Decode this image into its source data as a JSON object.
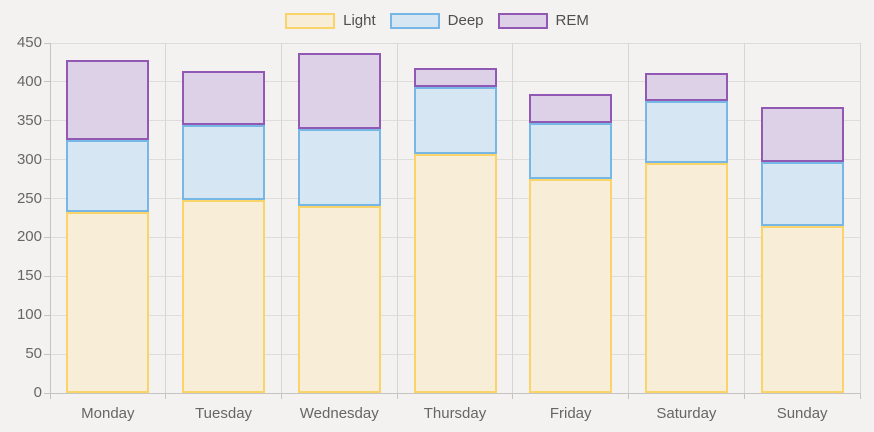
{
  "chart_data": {
    "type": "bar",
    "stacked": true,
    "categories": [
      "Monday",
      "Tuesday",
      "Wednesday",
      "Thursday",
      "Friday",
      "Saturday",
      "Sunday"
    ],
    "series": [
      {
        "name": "Light",
        "fill": "#f8eed7",
        "border": "#fbd469",
        "values": [
          233,
          248,
          240,
          307,
          275,
          296,
          215
        ]
      },
      {
        "name": "Deep",
        "fill": "#d6e6f2",
        "border": "#77b7e5",
        "values": [
          92,
          97,
          100,
          86,
          72,
          80,
          82
        ]
      },
      {
        "name": "REM",
        "fill": "#ddd1e7",
        "border": "#9159b3",
        "values": [
          103,
          69,
          97,
          25,
          38,
          36,
          71
        ]
      }
    ],
    "stack_totals": [
      428,
      414,
      437,
      418,
      385,
      412,
      368
    ],
    "title": "",
    "xlabel": "",
    "ylabel": "",
    "ylim": [
      0,
      450
    ],
    "ytick_step": 50,
    "ytick_labels": [
      "0",
      "50",
      "100",
      "150",
      "200",
      "250",
      "300",
      "350",
      "400",
      "450"
    ],
    "grid": true,
    "legend_position": "top"
  },
  "colors": {
    "background": "#f4f2f1",
    "hgridline": "#dfdddb",
    "vgridline": "#d8d6d4",
    "axis_line": "#c6c4c2",
    "axis_text": "#666666",
    "legend_text": "#4f4f4f"
  }
}
